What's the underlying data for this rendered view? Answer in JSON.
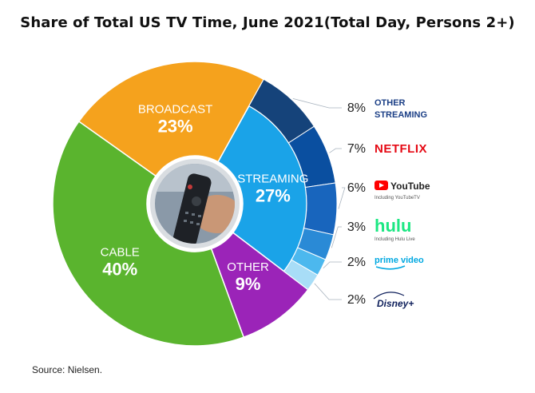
{
  "title": "Share of Total US TV Time, June 2021(Total Day, Persons 2+)",
  "source": "Source: Nielsen.",
  "chart_data": {
    "type": "pie",
    "title": "Share of Total US TV Time, June 2021(Total Day, Persons 2+)",
    "unit": "%",
    "slices": [
      {
        "name": "STREAMING",
        "label": "27%",
        "value": 27,
        "color": "#1aa3e8"
      },
      {
        "name": "OTHER",
        "label": "9%",
        "value": 9,
        "color": "#9b24b8"
      },
      {
        "name": "CABLE",
        "label": "40%",
        "value": 40,
        "color": "#5ab42e"
      },
      {
        "name": "BROADCAST",
        "label": "23%",
        "value": 23,
        "color": "#f5a21d"
      }
    ],
    "streaming_breakdown": [
      {
        "name": "OTHER STREAMING",
        "brand_line1": "OTHER",
        "brand_line2": "STREAMING",
        "label": "8%",
        "value": 8,
        "color": "#15437a"
      },
      {
        "name": "NETFLIX",
        "brand_line1": "NETFLIX",
        "label": "7%",
        "value": 7,
        "color": "#0a4fa0"
      },
      {
        "name": "YouTube",
        "brand_line1": "YouTube",
        "sublabel": "Including YouTubeTV",
        "label": "6%",
        "value": 6,
        "color": "#1865bd"
      },
      {
        "name": "hulu",
        "brand_line1": "hulu",
        "sublabel": "Including Hulu Live",
        "label": "3%",
        "value": 3,
        "color": "#2a8ad6"
      },
      {
        "name": "prime video",
        "brand_line1": "prime video",
        "label": "2%",
        "value": 2,
        "color": "#4cb8ee"
      },
      {
        "name": "Disney+",
        "brand_line1": "Disney+",
        "label": "2%",
        "value": 2,
        "color": "#a8ddf7"
      }
    ],
    "brand_colors": {
      "other_streaming": "#1b3f86",
      "netflix": "#e50914",
      "youtube": "#ff0000",
      "hulu": "#1ce783",
      "prime": "#00a8e1",
      "disney": "#0e1f5b"
    }
  }
}
